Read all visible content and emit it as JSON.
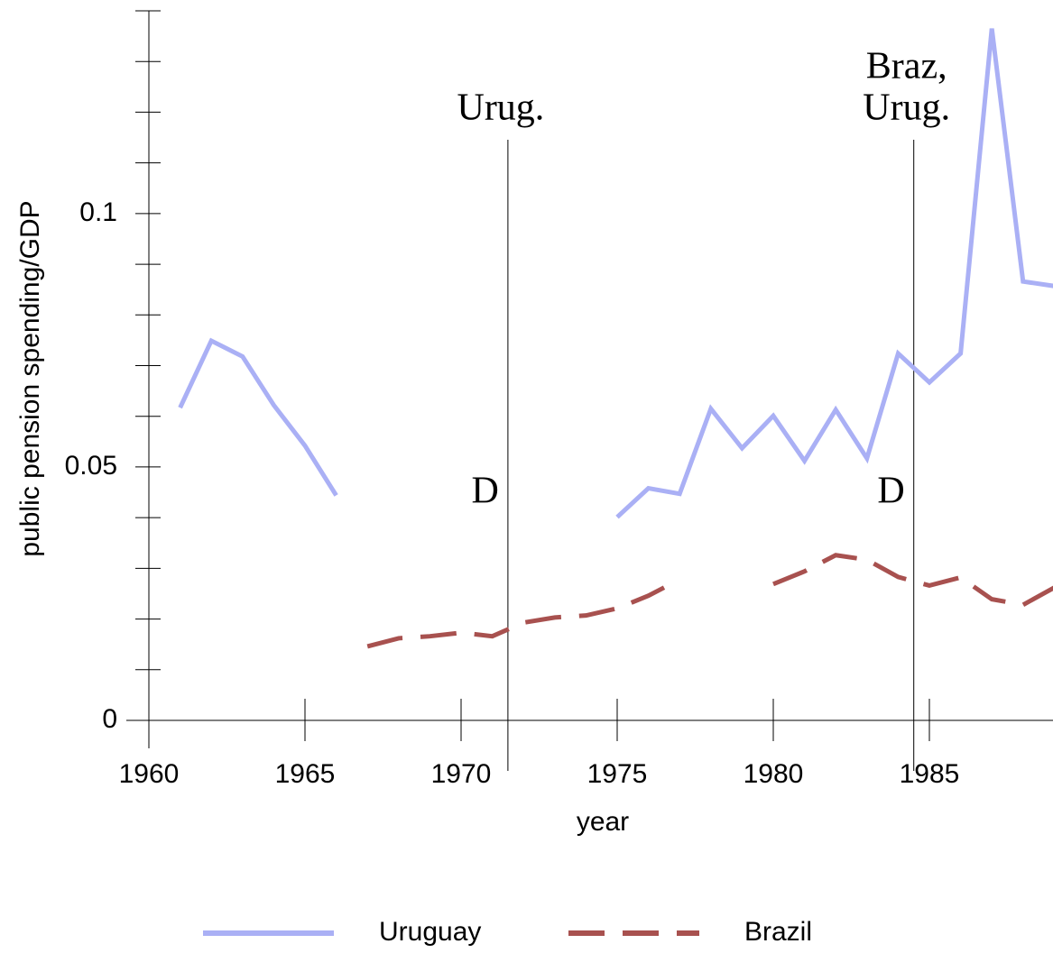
{
  "chart_data": {
    "type": "line",
    "x_label": "year",
    "y_label": "public pension spending/GDP",
    "x": [
      1961,
      1962,
      1963,
      1964,
      1965,
      1966,
      1967,
      1968,
      1969,
      1970,
      1971,
      1972,
      1973,
      1974,
      1975,
      1976,
      1977,
      1978,
      1979,
      1980,
      1981,
      1982,
      1983,
      1984,
      1985,
      1986,
      1987,
      1988,
      1989
    ],
    "series": [
      {
        "name": "Uruguay",
        "color": "#aab0f5",
        "dash": "solid",
        "values": [
          0.0617,
          0.0749,
          0.0718,
          0.0622,
          0.0542,
          0.0444,
          null,
          null,
          null,
          null,
          null,
          null,
          null,
          null,
          0.0401,
          0.0458,
          0.0447,
          0.0615,
          0.0537,
          0.0601,
          0.0512,
          0.0613,
          0.0517,
          0.0724,
          0.0667,
          0.0724,
          0.1365,
          0.0866,
          0.0857
        ]
      },
      {
        "name": "Brazil",
        "color": "#a8514f",
        "dash": "dashed",
        "values": [
          null,
          null,
          null,
          null,
          null,
          null,
          0.0146,
          0.0162,
          0.0166,
          0.0173,
          0.0166,
          0.0193,
          0.0203,
          0.0207,
          0.0221,
          0.0246,
          0.0278,
          null,
          null,
          0.0269,
          0.0294,
          0.0326,
          0.0317,
          0.0283,
          0.0266,
          0.0282,
          0.0239,
          0.0228,
          0.0262
        ]
      }
    ],
    "xlim": [
      1960,
      1989
    ],
    "ylim": [
      0,
      0.14
    ],
    "xticks": [
      1960,
      1965,
      1970,
      1975,
      1980,
      1985
    ],
    "yticks": [
      0,
      0.05,
      0.1
    ],
    "minor_yticks": [
      0.01,
      0.02,
      0.03,
      0.04,
      0.06,
      0.07,
      0.08,
      0.09,
      0.11,
      0.12,
      0.13,
      0.14
    ],
    "events": [
      {
        "x": 1971.5,
        "label": [
          "Urug."
        ],
        "marker": "D"
      },
      {
        "x": 1984.5,
        "label": [
          "Braz,",
          "Urug."
        ],
        "marker": "D"
      }
    ],
    "legend": "bottom"
  }
}
